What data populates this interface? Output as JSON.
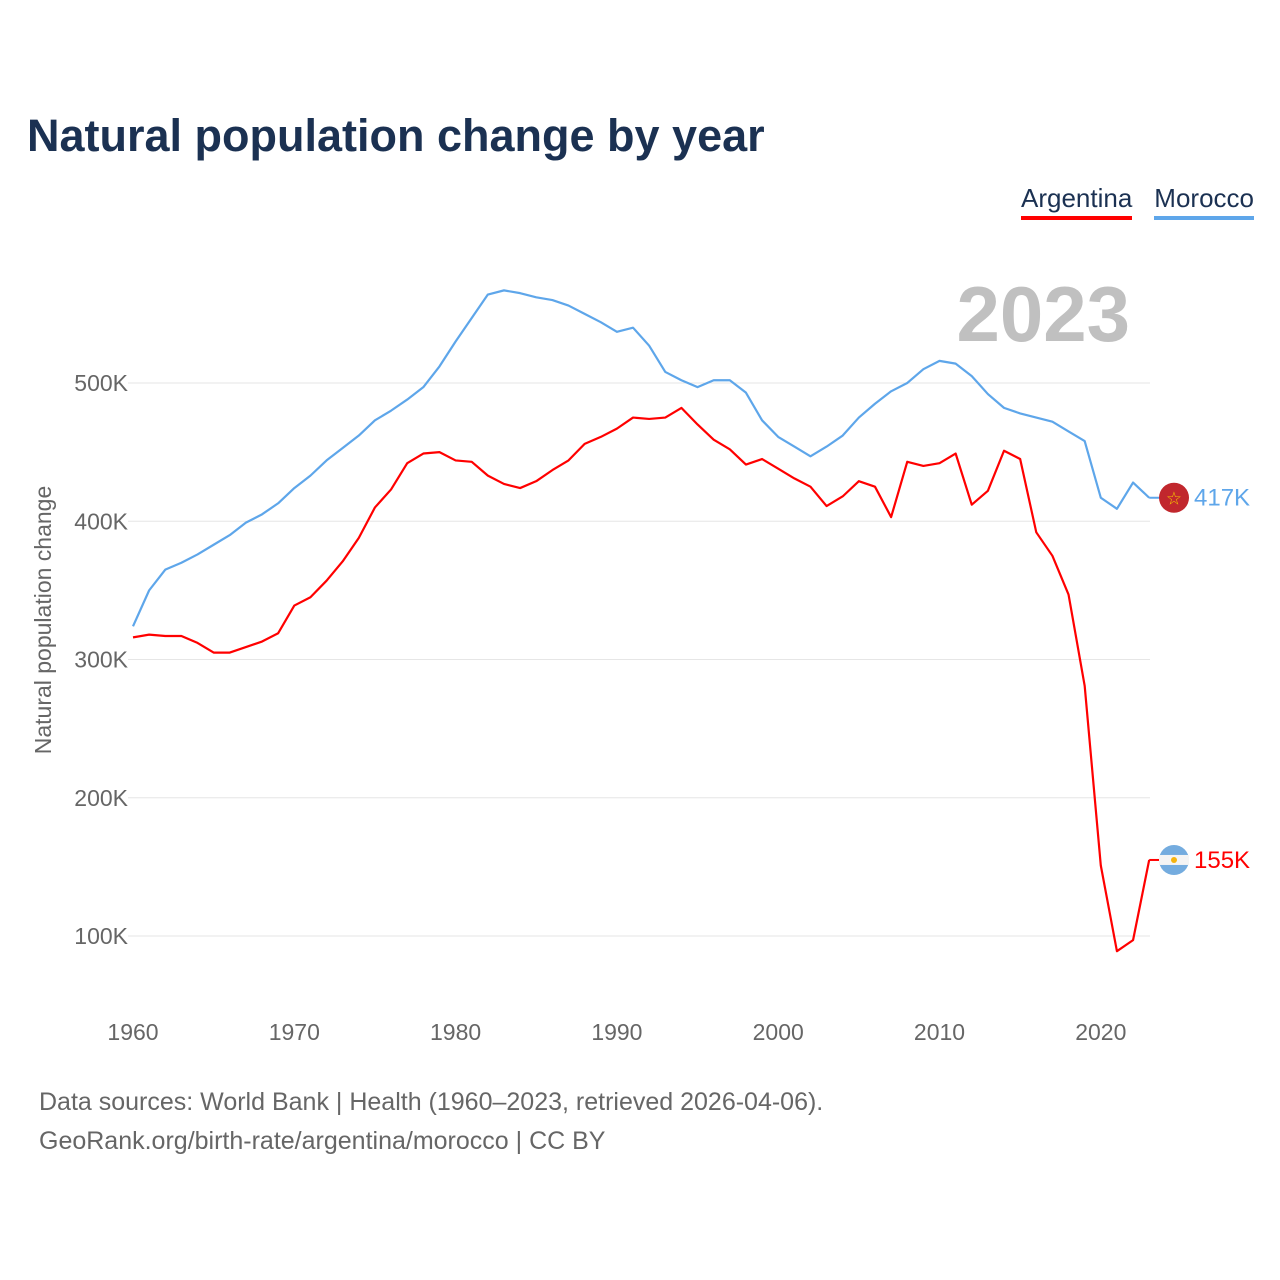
{
  "title": "Natural population change by year",
  "year_watermark": "2023",
  "footer": {
    "line1": "Data sources: World Bank | Health (1960–2023, retrieved 2026-04-06).",
    "line2": "GeoRank.org/birth-rate/argentina/morocco | CC BY"
  },
  "chart_data": {
    "type": "line",
    "title": "Natural population change by year",
    "xlabel": "",
    "ylabel": "Natural population change",
    "xlim": [
      1960,
      2023
    ],
    "ylim": [
      50,
      600
    ],
    "x_ticks": [
      1960,
      1970,
      1980,
      1990,
      2000,
      2010,
      2020
    ],
    "x_tick_labels": [
      "1960",
      "1970",
      "1980",
      "1990",
      "2000",
      "2010",
      "2020"
    ],
    "y_ticks": [
      100,
      200,
      300,
      400,
      500
    ],
    "y_tick_labels": [
      "100K",
      "200K",
      "300K",
      "400K",
      "500K"
    ],
    "grid": true,
    "legend_placement": "top-right",
    "x": [
      1960,
      1961,
      1962,
      1963,
      1964,
      1965,
      1966,
      1967,
      1968,
      1969,
      1970,
      1971,
      1972,
      1973,
      1974,
      1975,
      1976,
      1977,
      1978,
      1979,
      1980,
      1981,
      1982,
      1983,
      1984,
      1985,
      1986,
      1987,
      1988,
      1989,
      1990,
      1991,
      1992,
      1993,
      1994,
      1995,
      1996,
      1997,
      1998,
      1999,
      2000,
      2001,
      2002,
      2003,
      2004,
      2005,
      2006,
      2007,
      2008,
      2009,
      2010,
      2011,
      2012,
      2013,
      2014,
      2015,
      2016,
      2017,
      2018,
      2019,
      2020,
      2021,
      2022,
      2023
    ],
    "series": [
      {
        "name": "Argentina",
        "color": "#ff0000",
        "end_label": "155K",
        "flag": "argentina-flag",
        "values": [
          316,
          318,
          317,
          317,
          312,
          305,
          305,
          309,
          313,
          319,
          339,
          345,
          357,
          371,
          388,
          410,
          423,
          442,
          449,
          450,
          444,
          443,
          433,
          427,
          424,
          429,
          437,
          444,
          456,
          461,
          467,
          475,
          474,
          475,
          482,
          470,
          459,
          452,
          441,
          445,
          438,
          431,
          425,
          411,
          418,
          429,
          425,
          403,
          443,
          440,
          442,
          449,
          412,
          422,
          451,
          445,
          392,
          375,
          347,
          281,
          151,
          89,
          97,
          155
        ]
      },
      {
        "name": "Morocco",
        "color": "#5ea6ea",
        "end_label": "417K",
        "flag": "morocco-flag",
        "values": [
          324,
          350,
          365,
          370,
          376,
          383,
          390,
          399,
          405,
          413,
          424,
          433,
          444,
          453,
          462,
          473,
          480,
          488,
          497,
          512,
          530,
          547,
          564,
          567,
          565,
          562,
          560,
          556,
          550,
          544,
          537,
          540,
          527,
          508,
          502,
          497,
          502,
          502,
          493,
          473,
          461,
          454,
          447,
          454,
          462,
          475,
          485,
          494,
          500,
          510,
          516,
          514,
          505,
          492,
          482,
          478,
          475,
          472,
          465,
          458,
          417,
          409,
          428,
          417
        ]
      }
    ]
  }
}
